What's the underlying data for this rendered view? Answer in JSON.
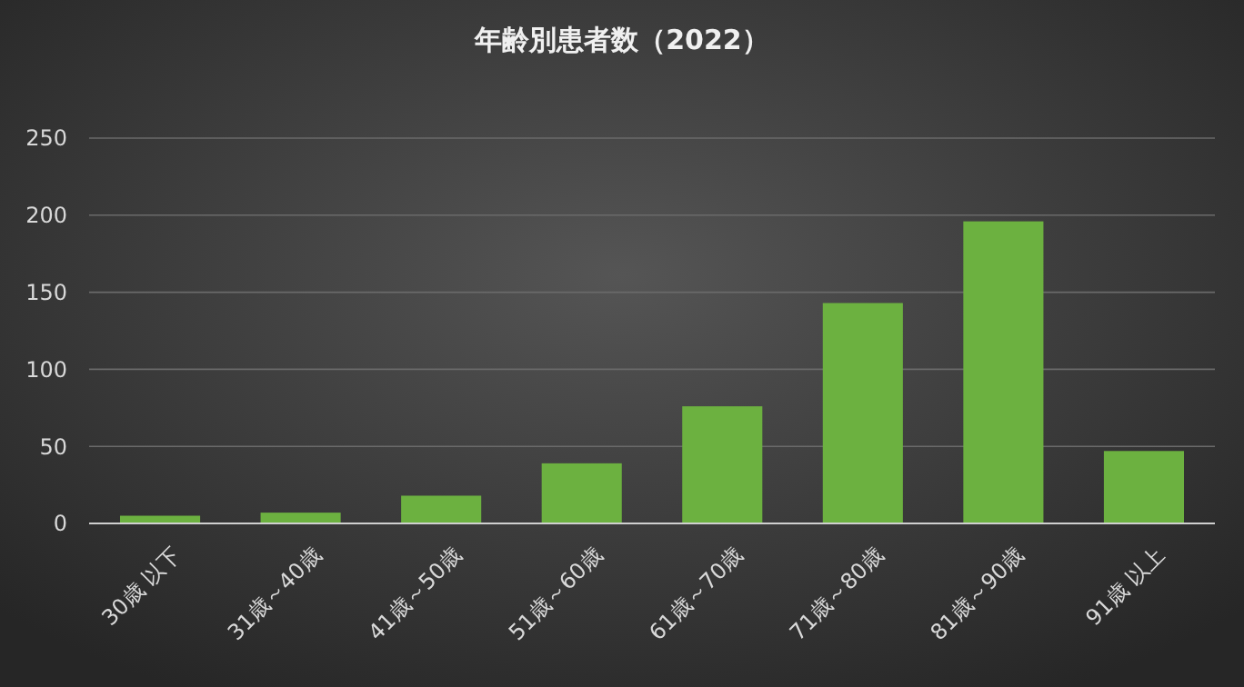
{
  "chart_data": {
    "type": "bar",
    "title": "年齢別患者数（2022）",
    "categories": [
      "30歳 以下",
      "31歳～40歳",
      "41歳～50歳",
      "51歳～60歳",
      "61歳～70歳",
      "71歳～80歳",
      "81歳～90歳",
      "91歳 以上"
    ],
    "values": [
      5,
      7,
      18,
      39,
      76,
      143,
      196,
      47
    ],
    "color": "#6cb140",
    "ylim": [
      0,
      250
    ],
    "yticks": [
      0,
      50,
      100,
      150,
      200,
      250
    ],
    "grid": "y"
  }
}
